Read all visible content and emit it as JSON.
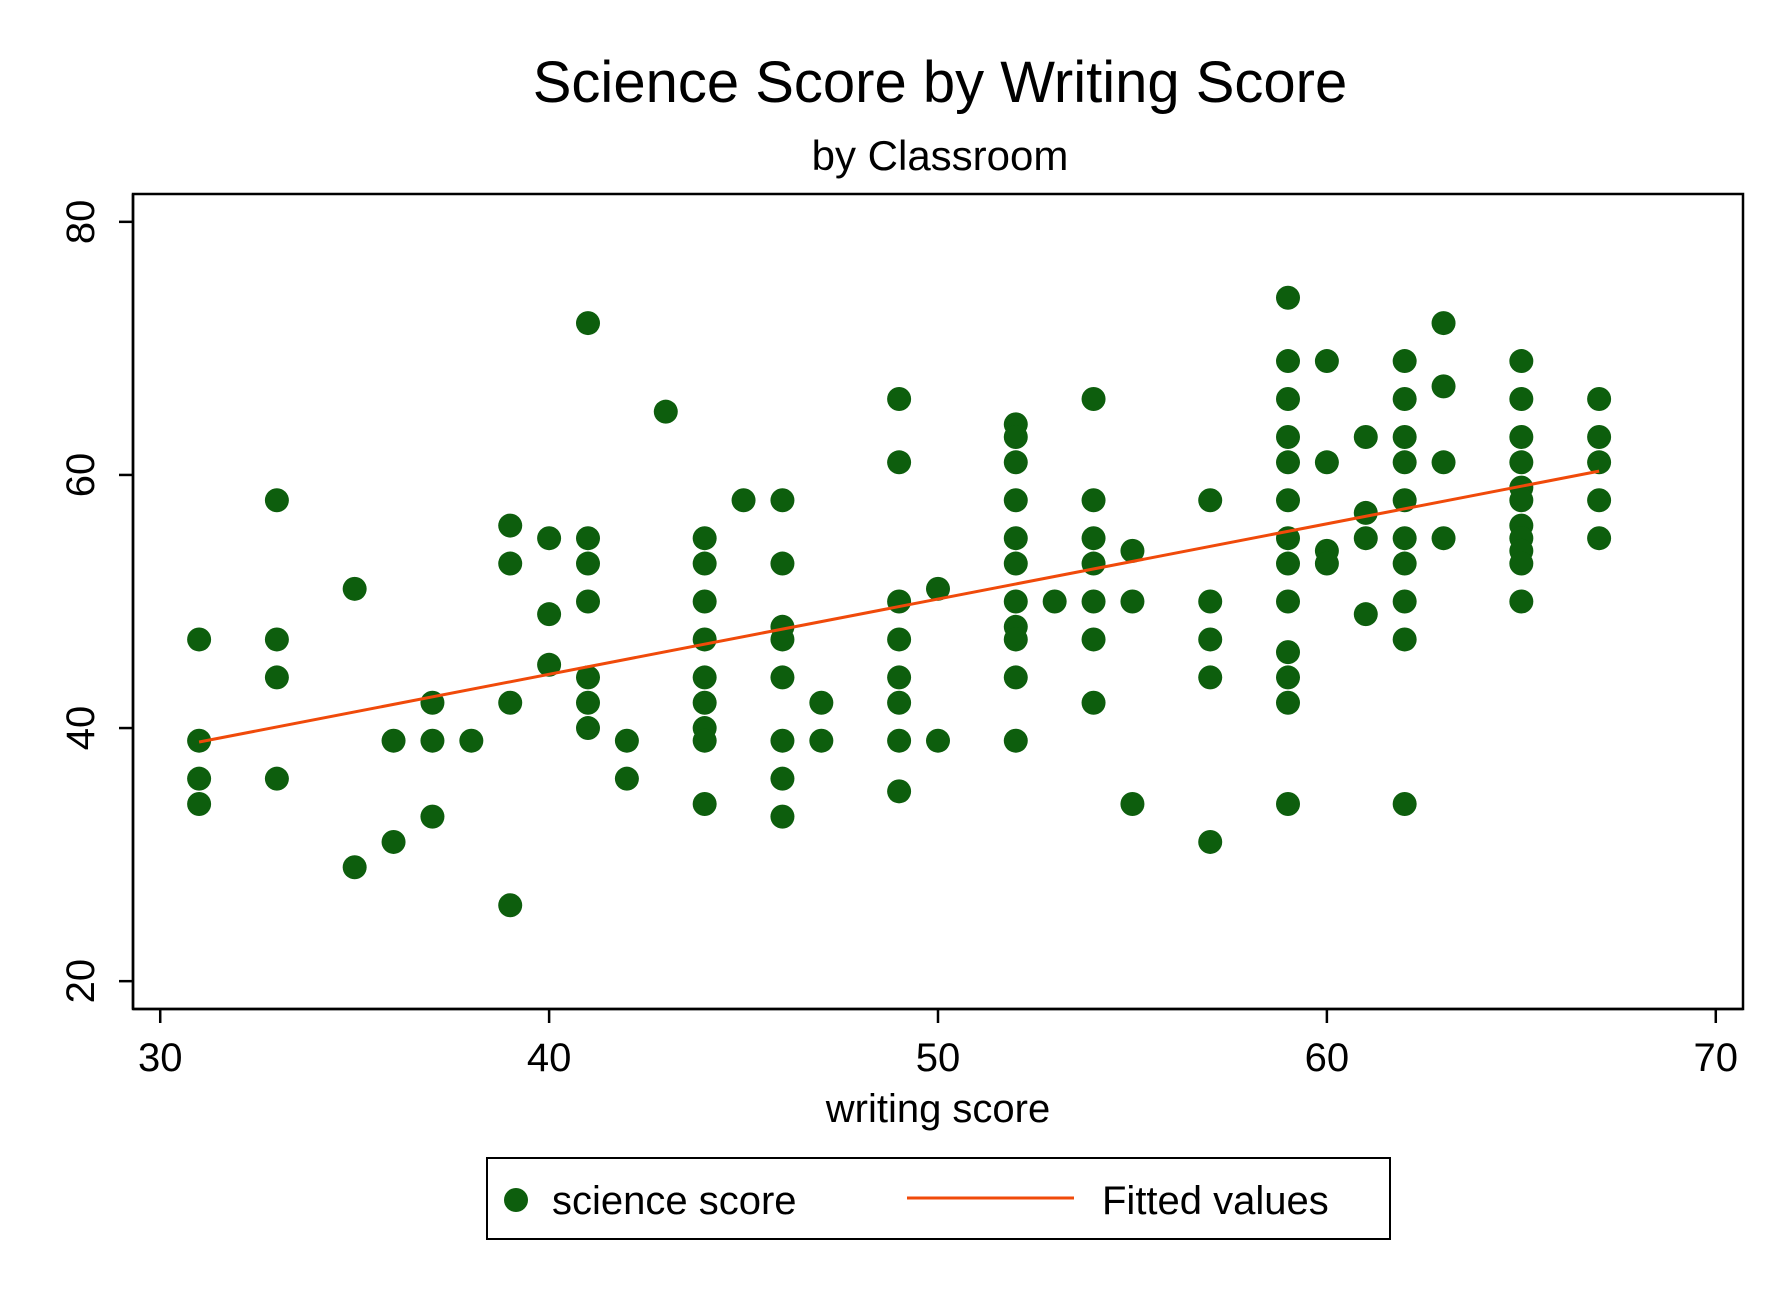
{
  "chart_data": {
    "type": "scatter",
    "title": "Science Score by Writing Score",
    "subtitle": "by Classroom",
    "xlabel": "writing score",
    "ylabel": "",
    "xlim": [
      29.3,
      70.7
    ],
    "ylim": [
      17.8,
      82.2
    ],
    "x_ticks": [
      30,
      40,
      50,
      60,
      70
    ],
    "y_ticks": [
      20,
      40,
      60,
      80
    ],
    "grid": false,
    "legend_position": "bottom",
    "colors": {
      "points": "#0d5e0d",
      "fit": "#f04a0a"
    },
    "series": [
      {
        "name": "science score",
        "kind": "scatter",
        "points": [
          [
            31,
            47
          ],
          [
            31,
            39
          ],
          [
            31,
            36
          ],
          [
            31,
            34
          ],
          [
            33,
            58
          ],
          [
            33,
            47
          ],
          [
            33,
            44
          ],
          [
            33,
            36
          ],
          [
            35,
            51
          ],
          [
            35,
            29
          ],
          [
            36,
            39
          ],
          [
            36,
            31
          ],
          [
            37,
            42
          ],
          [
            37,
            39
          ],
          [
            37,
            33
          ],
          [
            38,
            39
          ],
          [
            39,
            56
          ],
          [
            39,
            53
          ],
          [
            39,
            42
          ],
          [
            39,
            26
          ],
          [
            40,
            55
          ],
          [
            40,
            49
          ],
          [
            40,
            45
          ],
          [
            41,
            72
          ],
          [
            41,
            55
          ],
          [
            41,
            53
          ],
          [
            41,
            50
          ],
          [
            41,
            44
          ],
          [
            41,
            42
          ],
          [
            41,
            40
          ],
          [
            42,
            39
          ],
          [
            42,
            36
          ],
          [
            43,
            65
          ],
          [
            44,
            55
          ],
          [
            44,
            53
          ],
          [
            44,
            50
          ],
          [
            44,
            47
          ],
          [
            44,
            44
          ],
          [
            44,
            42
          ],
          [
            44,
            40
          ],
          [
            44,
            39
          ],
          [
            44,
            34
          ],
          [
            45,
            58
          ],
          [
            46,
            58
          ],
          [
            46,
            53
          ],
          [
            46,
            48
          ],
          [
            46,
            47
          ],
          [
            46,
            44
          ],
          [
            46,
            39
          ],
          [
            46,
            36
          ],
          [
            46,
            33
          ],
          [
            47,
            42
          ],
          [
            47,
            39
          ],
          [
            49,
            66
          ],
          [
            49,
            61
          ],
          [
            49,
            50
          ],
          [
            49,
            47
          ],
          [
            49,
            44
          ],
          [
            49,
            42
          ],
          [
            49,
            39
          ],
          [
            49,
            35
          ],
          [
            50,
            51
          ],
          [
            50,
            39
          ],
          [
            52,
            64
          ],
          [
            52,
            63
          ],
          [
            52,
            61
          ],
          [
            52,
            58
          ],
          [
            52,
            55
          ],
          [
            52,
            53
          ],
          [
            52,
            50
          ],
          [
            52,
            48
          ],
          [
            52,
            47
          ],
          [
            52,
            44
          ],
          [
            52,
            39
          ],
          [
            53,
            50
          ],
          [
            54,
            66
          ],
          [
            54,
            58
          ],
          [
            54,
            55
          ],
          [
            54,
            53
          ],
          [
            54,
            50
          ],
          [
            54,
            47
          ],
          [
            54,
            42
          ],
          [
            55,
            54
          ],
          [
            55,
            50
          ],
          [
            55,
            34
          ],
          [
            57,
            58
          ],
          [
            57,
            50
          ],
          [
            57,
            47
          ],
          [
            57,
            44
          ],
          [
            57,
            31
          ],
          [
            59,
            74
          ],
          [
            59,
            69
          ],
          [
            59,
            66
          ],
          [
            59,
            63
          ],
          [
            59,
            61
          ],
          [
            59,
            58
          ],
          [
            59,
            55
          ],
          [
            59,
            53
          ],
          [
            59,
            50
          ],
          [
            59,
            46
          ],
          [
            59,
            44
          ],
          [
            59,
            42
          ],
          [
            59,
            34
          ],
          [
            60,
            69
          ],
          [
            60,
            61
          ],
          [
            60,
            54
          ],
          [
            60,
            53
          ],
          [
            61,
            63
          ],
          [
            61,
            57
          ],
          [
            61,
            55
          ],
          [
            61,
            49
          ],
          [
            62,
            69
          ],
          [
            62,
            66
          ],
          [
            62,
            63
          ],
          [
            62,
            61
          ],
          [
            62,
            58
          ],
          [
            62,
            55
          ],
          [
            62,
            53
          ],
          [
            62,
            50
          ],
          [
            62,
            47
          ],
          [
            62,
            34
          ],
          [
            63,
            72
          ],
          [
            63,
            67
          ],
          [
            63,
            61
          ],
          [
            63,
            55
          ],
          [
            65,
            69
          ],
          [
            65,
            66
          ],
          [
            65,
            63
          ],
          [
            65,
            61
          ],
          [
            65,
            59
          ],
          [
            65,
            58
          ],
          [
            65,
            56
          ],
          [
            65,
            55
          ],
          [
            65,
            54
          ],
          [
            65,
            53
          ],
          [
            65,
            50
          ],
          [
            67,
            66
          ],
          [
            67,
            63
          ],
          [
            67,
            61
          ],
          [
            67,
            58
          ],
          [
            67,
            55
          ]
        ]
      },
      {
        "name": "Fitted values",
        "kind": "line",
        "points": [
          [
            31,
            38.9
          ],
          [
            67,
            60.3
          ]
        ]
      }
    ]
  }
}
